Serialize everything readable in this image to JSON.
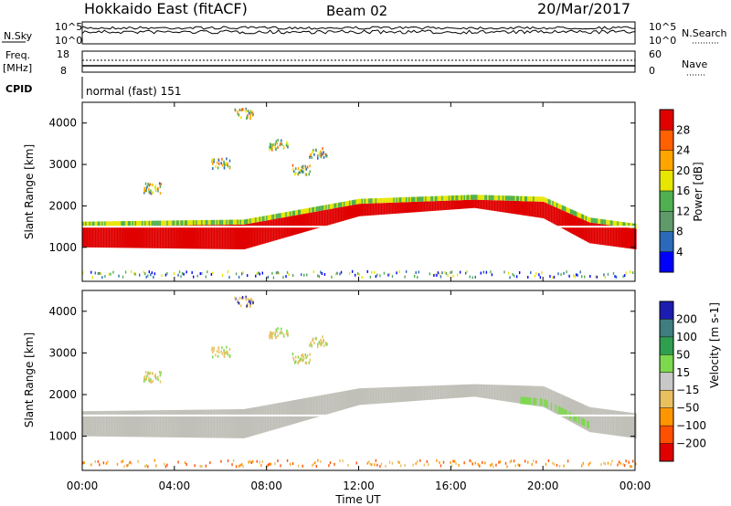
{
  "header": {
    "title_left": "Hokkaido East (fitACF)",
    "title_center": "Beam 02",
    "title_right": "20/Mar/2017"
  },
  "top_panels": {
    "nsky": {
      "label": "N.Sky",
      "tick_top": "10^5",
      "tick_bottom": "10^0",
      "right_label": "N.Search",
      "right_tick_top": "10^5",
      "right_tick_bottom": "10^0"
    },
    "freq": {
      "label_line1": "Freq.",
      "label_line2": "[MHz]",
      "tick_top": "18",
      "tick_bottom": "8",
      "right_label": "Nave",
      "right_tick_top": "60",
      "right_tick_bottom": "0"
    },
    "cpid": {
      "label": "CPID",
      "value": "normal (fast) 151"
    }
  },
  "chart_data": [
    {
      "type": "heatmap",
      "name": "power",
      "ylabel": "Slant Range [km]",
      "xlabel": "Time UT",
      "x_ticks": [
        "00:00",
        "04:00",
        "08:00",
        "12:00",
        "16:00",
        "20:00",
        "00:00"
      ],
      "y_ticks": [
        1000,
        2000,
        3000,
        4000
      ],
      "ylim": [
        180,
        4500
      ],
      "colorbar": {
        "label": "Power [dB]",
        "ticks": [
          4,
          8,
          12,
          16,
          20,
          24,
          28
        ],
        "colors": [
          "#0000ff",
          "#2a6ab8",
          "#5f9a6a",
          "#4fb04f",
          "#e6e600",
          "#ffa500",
          "#ff6000",
          "#e00000"
        ]
      },
      "bands": [
        {
          "time_h": [
            0,
            7,
            12,
            17,
            20,
            22,
            24
          ],
          "center_km": [
            1250,
            1250,
            1900,
            2050,
            1900,
            1350,
            1200
          ],
          "half_width_km": [
            250,
            300,
            150,
            100,
            200,
            250,
            250
          ],
          "value_db": 27
        }
      ]
    },
    {
      "type": "heatmap",
      "name": "velocity",
      "ylabel": "Slant Range [km]",
      "xlabel": "Time UT",
      "x_ticks": [
        "00:00",
        "04:00",
        "08:00",
        "12:00",
        "16:00",
        "20:00",
        "00:00"
      ],
      "y_ticks": [
        1000,
        2000,
        3000,
        4000
      ],
      "ylim": [
        180,
        4500
      ],
      "colorbar": {
        "label": "Velocity [m s-1]",
        "ticks": [
          200,
          100,
          50,
          15,
          -15,
          -50,
          -100,
          -200
        ],
        "colors": [
          "#1c1cb0",
          "#3e7e7e",
          "#2f9f4f",
          "#7ed84e",
          "#c8c8c8",
          "#e8c060",
          "#ff9600",
          "#ff5000",
          "#e00000"
        ]
      },
      "ground_scatter_color": "#c0c0b8"
    }
  ],
  "axes": {
    "xlabel": "Time UT"
  }
}
